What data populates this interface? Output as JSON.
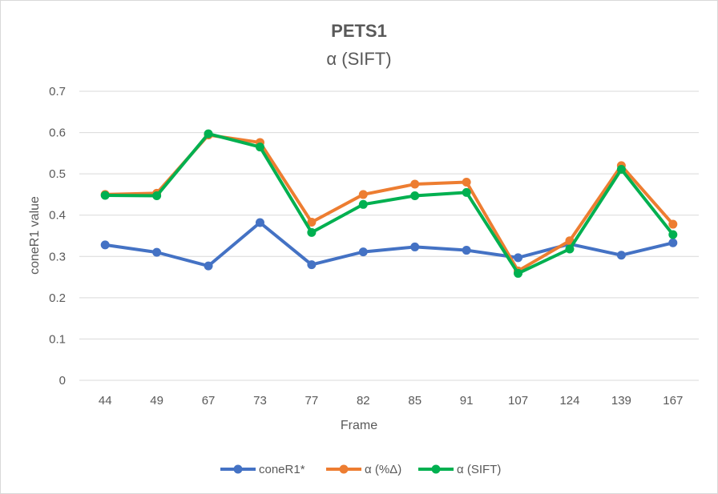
{
  "chart_data": {
    "type": "line",
    "title": "PETS1",
    "subtitle": "α (SIFT)",
    "xlabel": "Frame",
    "ylabel": "coneR1 value",
    "categories": [
      "44",
      "49",
      "67",
      "73",
      "77",
      "82",
      "85",
      "91",
      "107",
      "124",
      "139",
      "167"
    ],
    "ylim": [
      0,
      0.7
    ],
    "yticks": [
      "0",
      "0.1",
      "0.2",
      "0.3",
      "0.4",
      "0.5",
      "0.6",
      "0.7"
    ],
    "grid": true,
    "legend_position": "bottom",
    "series": [
      {
        "name": "coneR1*",
        "color": "#4472c4",
        "values": [
          0.328,
          0.31,
          0.277,
          0.382,
          0.28,
          0.311,
          0.323,
          0.315,
          0.297,
          0.33,
          0.303,
          0.333
        ]
      },
      {
        "name": "α (%Δ)",
        "color": "#ed7d31",
        "values": [
          0.45,
          0.453,
          0.594,
          0.576,
          0.383,
          0.45,
          0.475,
          0.48,
          0.265,
          0.338,
          0.52,
          0.378
        ]
      },
      {
        "name": "α (SIFT)",
        "color": "#00b050",
        "values": [
          0.448,
          0.447,
          0.597,
          0.565,
          0.358,
          0.426,
          0.447,
          0.455,
          0.259,
          0.318,
          0.511,
          0.353
        ]
      }
    ]
  }
}
